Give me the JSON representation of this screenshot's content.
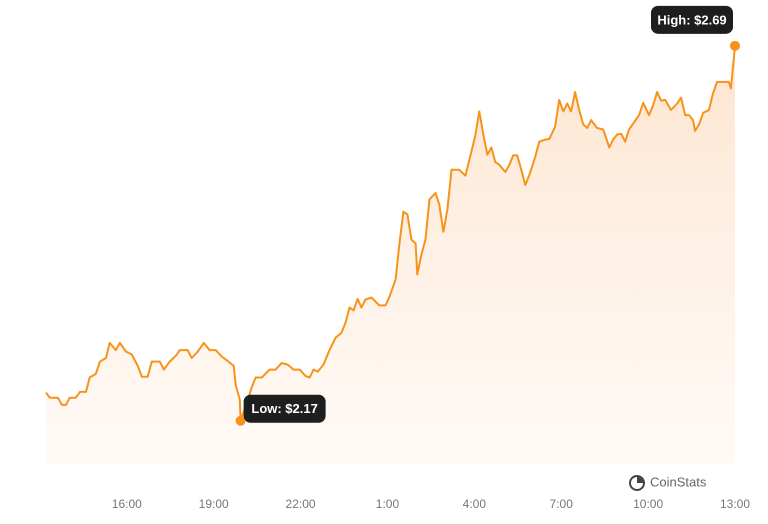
{
  "chart_data": {
    "type": "area",
    "x": [
      13.21,
      13.34,
      13.62,
      13.76,
      13.9,
      14.03,
      14.24,
      14.38,
      14.59,
      14.72,
      14.93,
      15.07,
      15.28,
      15.41,
      15.62,
      15.76,
      15.97,
      16.17,
      16.38,
      16.52,
      16.72,
      16.86,
      17.14,
      17.28,
      17.48,
      17.69,
      17.83,
      18.1,
      18.24,
      18.45,
      18.66,
      18.86,
      19.07,
      19.28,
      19.48,
      19.69,
      19.76,
      19.9,
      19.93,
      20.1,
      20.31,
      20.45,
      20.66,
      20.93,
      21.14,
      21.34,
      21.55,
      21.76,
      21.97,
      22.17,
      22.31,
      22.45,
      22.59,
      22.79,
      23.0,
      23.21,
      23.41,
      23.55,
      23.69,
      23.83,
      23.97,
      24.1,
      24.24,
      24.45,
      24.72,
      24.93,
      25.07,
      25.28,
      25.41,
      25.55,
      25.69,
      25.83,
      25.97,
      26.03,
      26.17,
      26.31,
      26.45,
      26.66,
      26.79,
      26.93,
      27.07,
      27.21,
      27.48,
      27.69,
      27.83,
      28.03,
      28.17,
      28.31,
      28.45,
      28.59,
      28.72,
      28.86,
      29.07,
      29.21,
      29.34,
      29.48,
      29.62,
      29.76,
      29.9,
      30.1,
      30.24,
      30.45,
      30.59,
      30.79,
      30.93,
      31.07,
      31.21,
      31.34,
      31.48,
      31.62,
      31.76,
      31.9,
      32.03,
      32.24,
      32.45,
      32.66,
      32.79,
      32.93,
      33.07,
      33.21,
      33.34,
      33.48,
      33.69,
      33.83,
      34.03,
      34.17,
      34.31,
      34.45,
      34.59,
      34.79,
      35.0,
      35.14,
      35.28,
      35.41,
      35.55,
      35.62,
      35.76,
      35.9,
      36.1,
      36.24,
      36.38,
      36.79,
      36.86,
      37
    ],
    "values": [
      2.209,
      2.202,
      2.202,
      2.192,
      2.192,
      2.202,
      2.202,
      2.21,
      2.21,
      2.23,
      2.235,
      2.252,
      2.257,
      2.278,
      2.268,
      2.278,
      2.266,
      2.262,
      2.246,
      2.231,
      2.231,
      2.252,
      2.252,
      2.241,
      2.252,
      2.26,
      2.268,
      2.268,
      2.257,
      2.266,
      2.278,
      2.268,
      2.268,
      2.259,
      2.253,
      2.246,
      2.22,
      2.199,
      2.17,
      2.189,
      2.216,
      2.23,
      2.23,
      2.241,
      2.241,
      2.25,
      2.248,
      2.241,
      2.241,
      2.232,
      2.23,
      2.241,
      2.238,
      2.248,
      2.268,
      2.285,
      2.292,
      2.306,
      2.327,
      2.323,
      2.339,
      2.327,
      2.338,
      2.341,
      2.33,
      2.33,
      2.342,
      2.366,
      2.414,
      2.46,
      2.456,
      2.421,
      2.416,
      2.373,
      2.4,
      2.421,
      2.477,
      2.486,
      2.47,
      2.432,
      2.463,
      2.518,
      2.518,
      2.51,
      2.532,
      2.565,
      2.599,
      2.567,
      2.539,
      2.549,
      2.529,
      2.525,
      2.515,
      2.525,
      2.538,
      2.538,
      2.518,
      2.497,
      2.511,
      2.536,
      2.557,
      2.56,
      2.561,
      2.578,
      2.615,
      2.599,
      2.61,
      2.599,
      2.626,
      2.601,
      2.581,
      2.576,
      2.587,
      2.576,
      2.574,
      2.549,
      2.56,
      2.567,
      2.568,
      2.557,
      2.574,
      2.582,
      2.594,
      2.611,
      2.594,
      2.607,
      2.626,
      2.614,
      2.615,
      2.601,
      2.61,
      2.618,
      2.594,
      2.594,
      2.587,
      2.572,
      2.581,
      2.597,
      2.601,
      2.624,
      2.64,
      2.64,
      2.631,
      2.69
    ],
    "color": "#f7931a",
    "xlim": [
      13.21,
      37
    ],
    "ylim": [
      2.11,
      2.73
    ],
    "xticks": [
      {
        "value": 16,
        "label": "16:00"
      },
      {
        "value": 19,
        "label": "19:00"
      },
      {
        "value": 22,
        "label": "22:00"
      },
      {
        "value": 25,
        "label": "1:00"
      },
      {
        "value": 28,
        "label": "4:00"
      },
      {
        "value": 31,
        "label": "7:00"
      },
      {
        "value": 34,
        "label": "10:00"
      },
      {
        "value": 37,
        "label": "13:00"
      }
    ],
    "annotations": [
      {
        "text": "Low: $2.17"
      },
      {
        "text": "High: $2.69"
      }
    ],
    "watermark": "CoinStats"
  }
}
